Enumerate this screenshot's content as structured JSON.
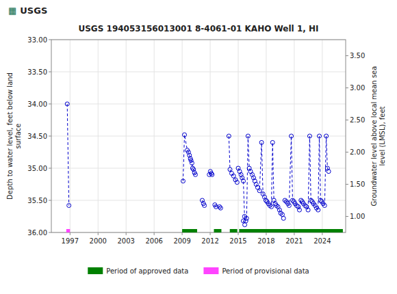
{
  "chart_data": {
    "type": "line",
    "title": "USGS 194053156013001 8-4061-01 KAHO Well 1, HI",
    "annotations": [
      {
        "text": "▦",
        "color": "#006644"
      },
      {
        "text": "USGS"
      }
    ],
    "ylabel": "Depth to water level, feet below land\nsurface",
    "y2label": "Groundwater level above local mean sea\nlevel (LMSL), feet",
    "xlim": [
      1995.0,
      2026.5
    ],
    "xticks": [
      1997,
      2000,
      2003,
      2006,
      2009,
      2012,
      2015,
      2018,
      2021,
      2024
    ],
    "ylim": [
      36.0,
      33.0
    ],
    "yticks": [
      {
        "value": 33.0,
        "label": "33.00"
      },
      {
        "value": 33.5,
        "label": "33.50"
      },
      {
        "value": 34.0,
        "label": "34.00"
      },
      {
        "value": 34.5,
        "label": "34.50"
      },
      {
        "value": 35.0,
        "label": "35.00"
      },
      {
        "value": 35.5,
        "label": "35.50"
      },
      {
        "value": 36.0,
        "label": "36.00"
      }
    ],
    "y2lim": [
      0.75,
      3.75
    ],
    "y2ticks": [
      {
        "value": 1.0,
        "label": "1.00"
      },
      {
        "value": 1.5,
        "label": "1.50"
      },
      {
        "value": 2.0,
        "label": "2.00"
      },
      {
        "value": 2.5,
        "label": "2.50"
      },
      {
        "value": 3.0,
        "label": "3.00"
      },
      {
        "value": 3.5,
        "label": "3.50"
      }
    ],
    "grid": true,
    "legend": "bottom",
    "color": "#0000cc",
    "marker": "open-circle",
    "line_style": "dashed",
    "series": [
      {
        "x": [
          1996.7,
          1996.88
        ],
        "values": [
          34.0,
          35.58
        ]
      },
      {
        "x": [
          2009.1,
          2009.25,
          2009.55,
          2009.68,
          2009.78,
          2009.88,
          2009.95,
          2010.05,
          2010.12,
          2010.22,
          2010.32,
          2010.42
        ],
        "values": [
          35.2,
          34.48,
          34.72,
          34.75,
          34.8,
          34.85,
          34.88,
          34.92,
          35.0,
          35.02,
          35.07,
          35.1
        ]
      },
      {
        "x": [
          2011.15,
          2011.28,
          2011.38
        ],
        "values": [
          35.5,
          35.55,
          35.58
        ]
      },
      {
        "x": [
          2011.9,
          2012.02,
          2012.12,
          2012.2
        ],
        "values": [
          35.1,
          35.05,
          35.08,
          35.1
        ]
      },
      {
        "x": [
          2012.5,
          2012.62,
          2013.0,
          2013.12
        ],
        "values": [
          35.57,
          35.6,
          35.6,
          35.62
        ]
      },
      {
        "x": [
          2014.0,
          2014.12,
          2014.3,
          2014.5,
          2014.7,
          2014.88
        ],
        "values": [
          34.5,
          35.02,
          35.08,
          35.12,
          35.18,
          35.22
        ]
      },
      {
        "x": [
          2015.0,
          2015.15,
          2015.3,
          2015.42,
          2015.55,
          2015.68,
          2015.82
        ],
        "values": [
          35.0,
          35.05,
          35.1,
          35.15,
          35.2,
          35.75,
          35.82
        ]
      },
      {
        "x": [
          2015.9,
          2016.05,
          2016.18,
          2016.32,
          2016.5,
          2016.65,
          2016.78
        ],
        "values": [
          35.78,
          34.5,
          35.0,
          35.05,
          35.1,
          35.15,
          35.2
        ]
      },
      {
        "x": [
          2016.92,
          2017.08,
          2017.28,
          2017.5,
          2017.65,
          2017.82,
          2017.96
        ],
        "values": [
          35.25,
          35.3,
          35.35,
          34.6,
          35.4,
          35.45,
          35.5
        ]
      },
      {
        "x": [
          2018.08,
          2018.22,
          2018.38,
          2018.55,
          2018.68,
          2018.82,
          2018.96
        ],
        "values": [
          35.52,
          35.55,
          35.58,
          35.6,
          34.6,
          35.5,
          35.55
        ]
      },
      {
        "x": [
          2019.08,
          2019.25,
          2019.42,
          2019.55,
          2019.72
        ],
        "values": [
          35.58,
          35.6,
          35.65,
          35.7,
          35.72
        ]
      },
      {
        "x": [
          2015.55,
          2015.7
        ],
        "values": [
          35.82,
          35.88
        ]
      },
      {
        "x": [
          2019.85
        ],
        "values": [
          35.78
        ]
      },
      {
        "x": [
          2020.0,
          2020.15,
          2020.32,
          2020.45,
          2020.68,
          2020.82,
          2020.96
        ],
        "values": [
          35.5,
          35.52,
          35.55,
          35.58,
          34.5,
          35.5,
          35.52
        ]
      },
      {
        "x": [
          2021.08,
          2021.25,
          2021.42,
          2021.55,
          2021.72,
          2021.85
        ],
        "values": [
          35.55,
          35.58,
          35.6,
          35.65,
          35.5,
          35.52
        ]
      },
      {
        "x": [
          2021.98,
          2022.15,
          2022.32,
          2022.48,
          2022.65,
          2022.78,
          2022.92
        ],
        "values": [
          35.55,
          35.58,
          35.6,
          35.65,
          34.5,
          35.5,
          35.52
        ]
      },
      {
        "x": [
          2023.05,
          2023.22,
          2023.38,
          2023.55,
          2023.68,
          2023.82
        ],
        "values": [
          35.55,
          35.58,
          35.62,
          35.65,
          34.5,
          35.5
        ]
      },
      {
        "x": [
          2023.95,
          2024.08,
          2024.25,
          2024.42,
          2024.55,
          2024.68
        ],
        "values": [
          35.52,
          35.55,
          35.58,
          34.5,
          35.0,
          35.05
        ]
      },
      {
        "name": "Period of approved data",
        "type": "bar",
        "color": "#008000",
        "x": [
          2009.0,
          2012.4,
          2014.1,
          2015.1
        ],
        "x_end": [
          2010.6,
          2013.2,
          2014.9,
          2026.2
        ],
        "values": [
          36.0,
          36.0,
          36.0,
          36.0
        ]
      },
      {
        "name": "Period of provisional data",
        "type": "bar",
        "color": "#ff44ff",
        "x": [
          1996.6
        ],
        "x_end": [
          1997.0
        ],
        "values": [
          36.0
        ]
      }
    ]
  }
}
